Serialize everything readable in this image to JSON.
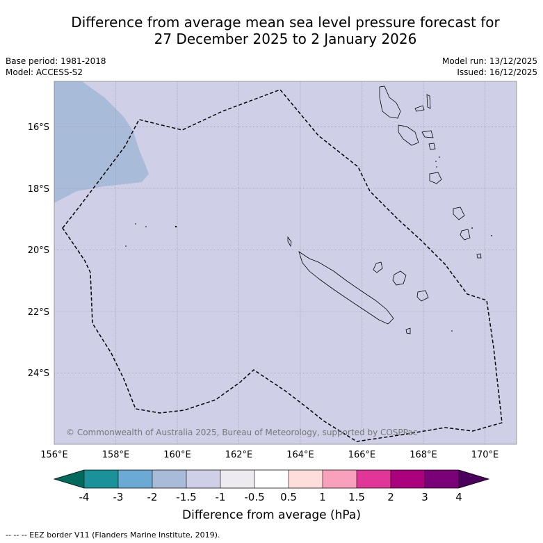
{
  "title_line1": "Difference from average mean sea level pressure forecast for",
  "title_line2": "27 December 2025 to 2 January 2026",
  "base_period": "Base period: 1981-2018",
  "model": "Model: ACCESS-S2",
  "model_run": "Model run: 13/12/2025",
  "issued": "Issued: 16/12/2025",
  "copyright": "© Commonwealth of Australia 2025, Bureau of Meteorology, supported by COSPPac",
  "lon_labels": [
    "156°E",
    "158°E",
    "160°E",
    "162°E",
    "164°E",
    "166°E",
    "168°E",
    "170°E"
  ],
  "lat_labels": [
    "16°S",
    "18°S",
    "20°S",
    "22°S",
    "24°S"
  ],
  "colorbar": {
    "title": "Difference from average (hPa)",
    "tick_labels": [
      "-4",
      "-3",
      "-2",
      "-1.5",
      "-1",
      "-0.5",
      "0.5",
      "1",
      "1.5",
      "2",
      "3",
      "4"
    ],
    "colors": {
      "lt_m4": "#006a5c",
      "m4_m3": "#1b9299",
      "m3_m2": "#6aaad4",
      "m2_m15": "#a8bbd8",
      "m15_m1": "#cfcfe7",
      "m1_m05": "#edebf0",
      "m05_05": "#ffffff",
      "p05_1": "#fddedb",
      "p1_15": "#f7a1bc",
      "p15_2": "#df3698",
      "p2_3": "#ac017e",
      "p3_4": "#7a0177",
      "gt_4": "#4a005c"
    }
  },
  "footer": "-- -- -- EEZ border V11 (Flanders Marine Institute, 2019)."
}
